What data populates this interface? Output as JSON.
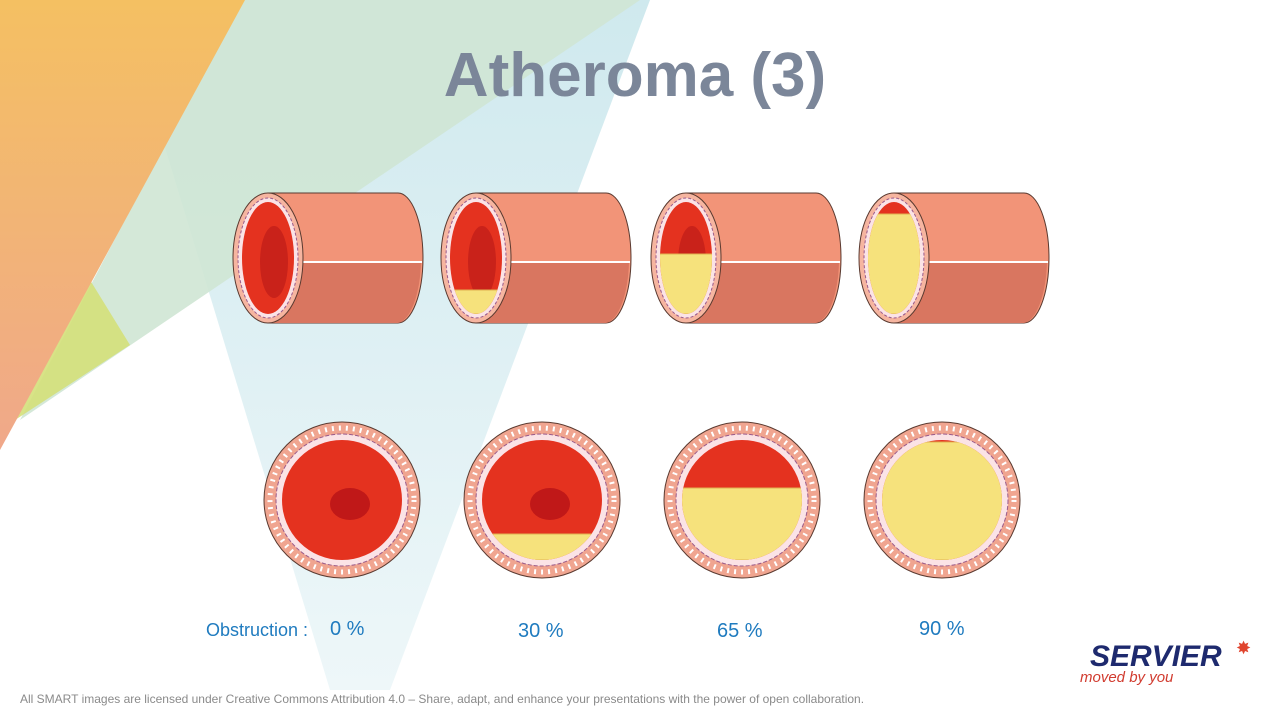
{
  "title": "Atheroma (3)",
  "obstruction_label": "Obstruction :",
  "obstruction_values": [
    "0 %",
    "30 %",
    "65 %",
    "90 %"
  ],
  "logo": {
    "name": "SERVIER",
    "tagline": "moved by you"
  },
  "footer": "All SMART images are licensed under Creative Commons Attribution 4.0 – Share, adapt, and enhance your presentations with the power of open collaboration."
}
